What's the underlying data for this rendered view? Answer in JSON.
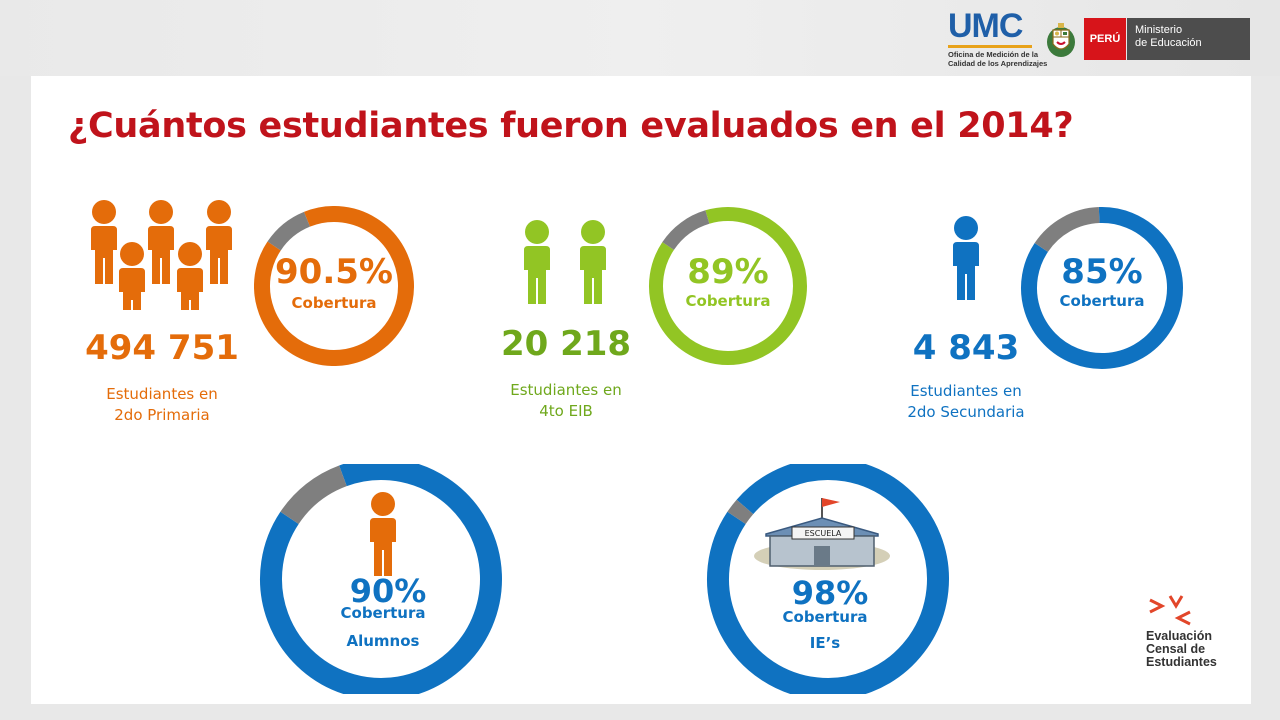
{
  "header": {
    "umc_logo": "UMC",
    "umc_line1": "Oficina de Medición de la",
    "umc_line2": "Calidad de los Aprendizajes",
    "peru_label": "PERÚ",
    "ministry_line1": "Ministerio",
    "ministry_line2": "de Educación"
  },
  "title": "¿Cuántos estudiantes fueron evaluados en el 2014?",
  "colors": {
    "primaria": "#e46c0a",
    "eib": "#92c524",
    "secundaria": "#0f72c1",
    "remainder": "#7f7f7f",
    "title": "#c0131b"
  },
  "groups": [
    {
      "count": "494 751",
      "desc_line1": "Estudiantes en",
      "desc_line2": "2do Primaria",
      "pct_label": "90.5%",
      "cob_label": "Cobertura"
    },
    {
      "count": "20 218",
      "desc_line1": "Estudiantes en",
      "desc_line2": "4to EIB",
      "pct_label": "89%",
      "cob_label": "Cobertura"
    },
    {
      "count": "4 843",
      "desc_line1": "Estudiantes en",
      "desc_line2": "2do Secundaria",
      "pct_label": "85%",
      "cob_label": "Cobertura"
    }
  ],
  "bottom": [
    {
      "pct_label": "90%",
      "cob_label": "Cobertura",
      "sub_label": "Alumnos"
    },
    {
      "pct_label": "98%",
      "cob_label": "Cobertura",
      "sub_label": "IE’s",
      "school_sign": "ESCUELA"
    }
  ],
  "ece_logo": {
    "line1": "Evaluación",
    "line2": "Censal de",
    "line3": "Estudiantes"
  },
  "chart_data": [
    {
      "type": "pie",
      "title": "",
      "categories": [
        "Cobertura",
        ""
      ],
      "values": [
        90.5,
        9.5
      ],
      "colors": [
        "#e46c0a",
        "#7f7f7f"
      ]
    },
    {
      "type": "pie",
      "title": "",
      "categories": [
        "Cobertura",
        ""
      ],
      "values": [
        89,
        11
      ],
      "colors": [
        "#92c524",
        "#7f7f7f"
      ]
    },
    {
      "type": "pie",
      "title": "",
      "categories": [
        "Cobertura",
        ""
      ],
      "values": [
        85,
        15
      ],
      "colors": [
        "#0f72c1",
        "#7f7f7f"
      ]
    },
    {
      "type": "pie",
      "title": "",
      "categories": [
        "Cobertura Alumnos",
        ""
      ],
      "values": [
        90,
        10
      ],
      "colors": [
        "#0f72c1",
        "#7f7f7f"
      ]
    },
    {
      "type": "pie",
      "title": "",
      "categories": [
        "Cobertura IE’s",
        ""
      ],
      "values": [
        98,
        2
      ],
      "colors": [
        "#0f72c1",
        "#7f7f7f"
      ]
    }
  ]
}
